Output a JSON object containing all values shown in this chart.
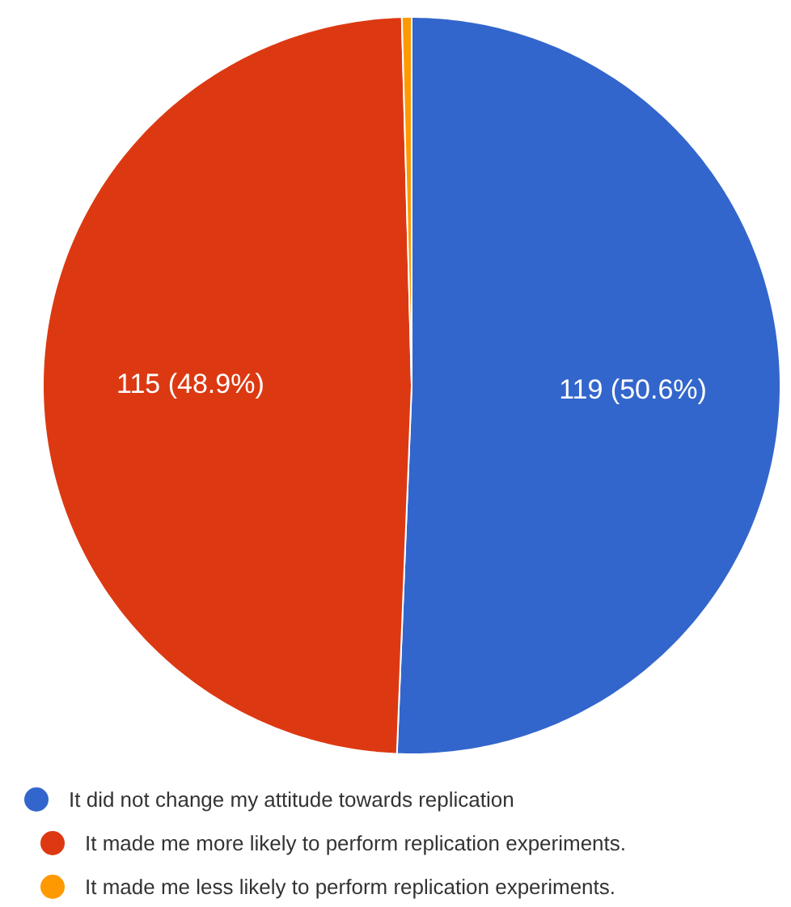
{
  "chart_data": {
    "type": "pie",
    "categories": [
      "It did not change my attitude towards replication",
      "It made me more likely to perform replication experiments.",
      "It made me less likely to perform replication experiments."
    ],
    "values": [
      119,
      115,
      1
    ],
    "colors": [
      "#3366cc",
      "#dc3912",
      "#ff9900"
    ],
    "value_labels": [
      "119 (50.6%)",
      "115 (48.9%)",
      null
    ],
    "legend": "bottom"
  }
}
